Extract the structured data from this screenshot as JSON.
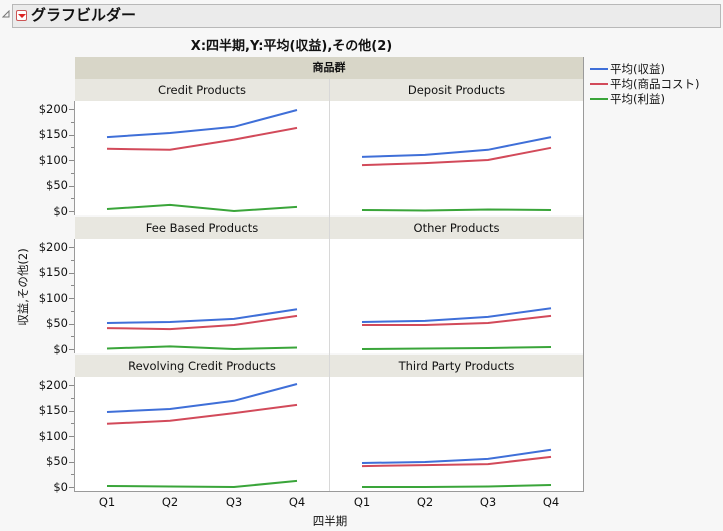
{
  "header": {
    "title": "グラフビルダー"
  },
  "chart_data": {
    "type": "line",
    "title": "X:四半期,Y:平均(収益),その他(2)",
    "xlabel": "四半期",
    "ylabel": "収益,その他(2)",
    "group_by_label": "商品群",
    "categories": [
      "Q1",
      "Q2",
      "Q3",
      "Q4"
    ],
    "y_ticks": [
      "$200",
      "$150",
      "$100",
      "$50",
      "$0"
    ],
    "ylim": [
      0,
      200
    ],
    "legend_position": "right",
    "legend": [
      {
        "name": "平均(収益)",
        "color": "#3f6fd8"
      },
      {
        "name": "平均(商品コスト)",
        "color": "#d24a5a"
      },
      {
        "name": "平均(利益)",
        "color": "#3aa53a"
      }
    ],
    "panels": [
      {
        "name": "Credit Products",
        "series": [
          {
            "name": "平均(収益)",
            "values": [
              145,
              153,
              165,
              198
            ]
          },
          {
            "name": "平均(商品コスト)",
            "values": [
              122,
              120,
              140,
              163
            ]
          },
          {
            "name": "平均(利益)",
            "values": [
              4,
              12,
              0,
              8
            ]
          }
        ]
      },
      {
        "name": "Deposit Products",
        "series": [
          {
            "name": "平均(収益)",
            "values": [
              106,
              110,
              120,
              145
            ]
          },
          {
            "name": "平均(商品コスト)",
            "values": [
              90,
              94,
              100,
              124
            ]
          },
          {
            "name": "平均(利益)",
            "values": [
              2,
              1,
              3,
              2
            ]
          }
        ]
      },
      {
        "name": "Fee Based Products",
        "series": [
          {
            "name": "平均(収益)",
            "values": [
              51,
              53,
              59,
              78
            ]
          },
          {
            "name": "平均(商品コスト)",
            "values": [
              41,
              39,
              47,
              65
            ]
          },
          {
            "name": "平均(利益)",
            "values": [
              1,
              5,
              0,
              3
            ]
          }
        ]
      },
      {
        "name": "Other Products",
        "series": [
          {
            "name": "平均(収益)",
            "values": [
              53,
              55,
              63,
              80
            ]
          },
          {
            "name": "平均(商品コスト)",
            "values": [
              47,
              47,
              51,
              65
            ]
          },
          {
            "name": "平均(利益)",
            "values": [
              0,
              1,
              2,
              4
            ]
          }
        ]
      },
      {
        "name": "Revolving Credit Products",
        "series": [
          {
            "name": "平均(収益)",
            "values": [
              147,
              153,
              169,
              202
            ]
          },
          {
            "name": "平均(商品コスト)",
            "values": [
              124,
              130,
              145,
              161
            ]
          },
          {
            "name": "平均(利益)",
            "values": [
              2,
              1,
              0,
              12
            ]
          }
        ]
      },
      {
        "name": "Third Party Products",
        "series": [
          {
            "name": "平均(収益)",
            "values": [
              47,
              49,
              55,
              73
            ]
          },
          {
            "name": "平均(商品コスト)",
            "values": [
              41,
              43,
              45,
              59
            ]
          },
          {
            "name": "平均(利益)",
            "values": [
              0,
              0,
              1,
              4
            ]
          }
        ]
      }
    ]
  }
}
